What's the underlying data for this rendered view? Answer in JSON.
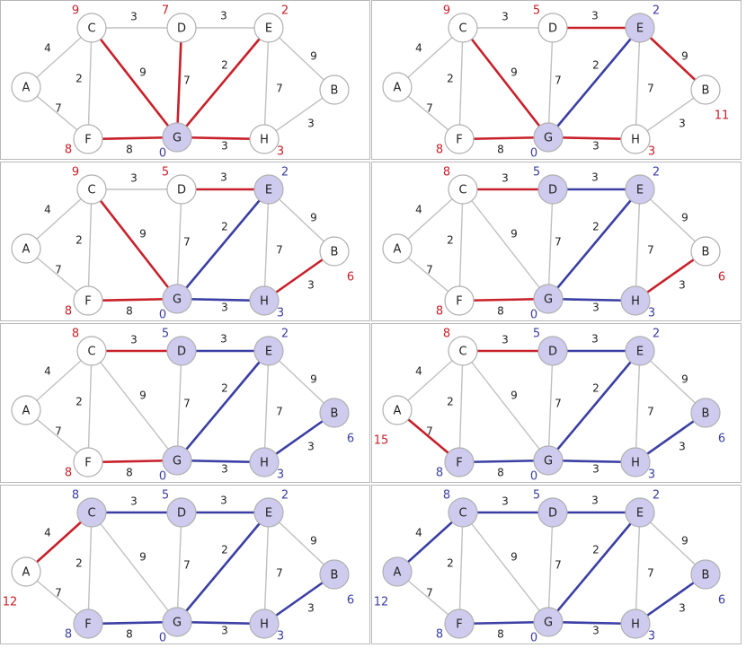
{
  "colors": {
    "edge_default": "#c0c0c0",
    "edge_candidate": "#c8202a",
    "edge_tree": "#3b3fa3",
    "node_fill": "#ffffff",
    "node_fill_visited": "#cfcbee",
    "node_stroke": "#b0b0b0",
    "dist_visited": "#3b3fa3",
    "dist_tentative": "#c8202a"
  },
  "graph": {
    "edges": [
      {
        "id": "A-C",
        "from": "A",
        "to": "C",
        "weight": "4"
      },
      {
        "id": "A-F",
        "from": "A",
        "to": "F",
        "weight": "7"
      },
      {
        "id": "C-D",
        "from": "C",
        "to": "D",
        "weight": "3"
      },
      {
        "id": "C-F",
        "from": "C",
        "to": "F",
        "weight": "2"
      },
      {
        "id": "C-G",
        "from": "C",
        "to": "G",
        "weight": "9"
      },
      {
        "id": "D-E",
        "from": "D",
        "to": "E",
        "weight": "3"
      },
      {
        "id": "D-G",
        "from": "D",
        "to": "G",
        "weight": "7"
      },
      {
        "id": "E-G",
        "from": "E",
        "to": "G",
        "weight": "2"
      },
      {
        "id": "E-H",
        "from": "E",
        "to": "H",
        "weight": "7"
      },
      {
        "id": "E-B",
        "from": "E",
        "to": "B",
        "weight": "9"
      },
      {
        "id": "F-G",
        "from": "F",
        "to": "G",
        "weight": "8"
      },
      {
        "id": "G-H",
        "from": "G",
        "to": "H",
        "weight": "3"
      },
      {
        "id": "H-B",
        "from": "H",
        "to": "B",
        "weight": "3"
      }
    ],
    "nodes": [
      "A",
      "B",
      "C",
      "D",
      "E",
      "F",
      "G",
      "H"
    ]
  },
  "panels": [
    {
      "visited": [
        "G"
      ],
      "dist": {
        "G": "0",
        "C": "9",
        "D": "7",
        "E": "2",
        "F": "8",
        "H": "3"
      },
      "edges": {
        "C-G": "candidate",
        "D-G": "candidate",
        "E-G": "candidate",
        "F-G": "candidate",
        "G-H": "candidate"
      }
    },
    {
      "visited": [
        "G",
        "E"
      ],
      "dist": {
        "G": "0",
        "E": "2",
        "C": "9",
        "D": "5",
        "F": "8",
        "H": "3",
        "B": "11"
      },
      "edges": {
        "E-G": "tree",
        "C-G": "candidate",
        "D-E": "candidate",
        "E-B": "candidate",
        "F-G": "candidate",
        "G-H": "candidate"
      }
    },
    {
      "visited": [
        "G",
        "E",
        "H"
      ],
      "dist": {
        "G": "0",
        "E": "2",
        "H": "3",
        "C": "9",
        "D": "5",
        "F": "8",
        "B": "6"
      },
      "edges": {
        "E-G": "tree",
        "G-H": "tree",
        "C-G": "candidate",
        "D-E": "candidate",
        "F-G": "candidate",
        "H-B": "candidate"
      }
    },
    {
      "visited": [
        "G",
        "E",
        "H",
        "D"
      ],
      "dist": {
        "G": "0",
        "E": "2",
        "H": "3",
        "D": "5",
        "C": "8",
        "F": "8",
        "B": "6"
      },
      "edges": {
        "E-G": "tree",
        "G-H": "tree",
        "D-E": "tree",
        "C-D": "candidate",
        "F-G": "candidate",
        "H-B": "candidate"
      }
    },
    {
      "visited": [
        "G",
        "E",
        "H",
        "D",
        "B"
      ],
      "dist": {
        "G": "0",
        "E": "2",
        "H": "3",
        "D": "5",
        "B": "6",
        "C": "8",
        "F": "8"
      },
      "edges": {
        "E-G": "tree",
        "G-H": "tree",
        "D-E": "tree",
        "H-B": "tree",
        "C-D": "candidate",
        "F-G": "candidate"
      }
    },
    {
      "visited": [
        "G",
        "E",
        "H",
        "D",
        "B",
        "F"
      ],
      "dist": {
        "G": "0",
        "E": "2",
        "H": "3",
        "D": "5",
        "B": "6",
        "F": "8",
        "C": "8",
        "A": "15"
      },
      "edges": {
        "E-G": "tree",
        "G-H": "tree",
        "D-E": "tree",
        "H-B": "tree",
        "F-G": "tree",
        "C-D": "candidate",
        "A-F": "candidate"
      }
    },
    {
      "visited": [
        "G",
        "E",
        "H",
        "D",
        "B",
        "F",
        "C"
      ],
      "dist": {
        "G": "0",
        "E": "2",
        "H": "3",
        "D": "5",
        "B": "6",
        "F": "8",
        "C": "8",
        "A": "12"
      },
      "edges": {
        "E-G": "tree",
        "G-H": "tree",
        "D-E": "tree",
        "H-B": "tree",
        "F-G": "tree",
        "C-D": "tree",
        "A-C": "candidate"
      }
    },
    {
      "visited": [
        "G",
        "E",
        "H",
        "D",
        "B",
        "F",
        "C",
        "A"
      ],
      "dist": {
        "G": "0",
        "E": "2",
        "H": "3",
        "D": "5",
        "B": "6",
        "F": "8",
        "C": "8",
        "A": "12"
      },
      "edges": {
        "E-G": "tree",
        "G-H": "tree",
        "D-E": "tree",
        "H-B": "tree",
        "F-G": "tree",
        "C-D": "tree",
        "A-C": "tree"
      }
    }
  ]
}
